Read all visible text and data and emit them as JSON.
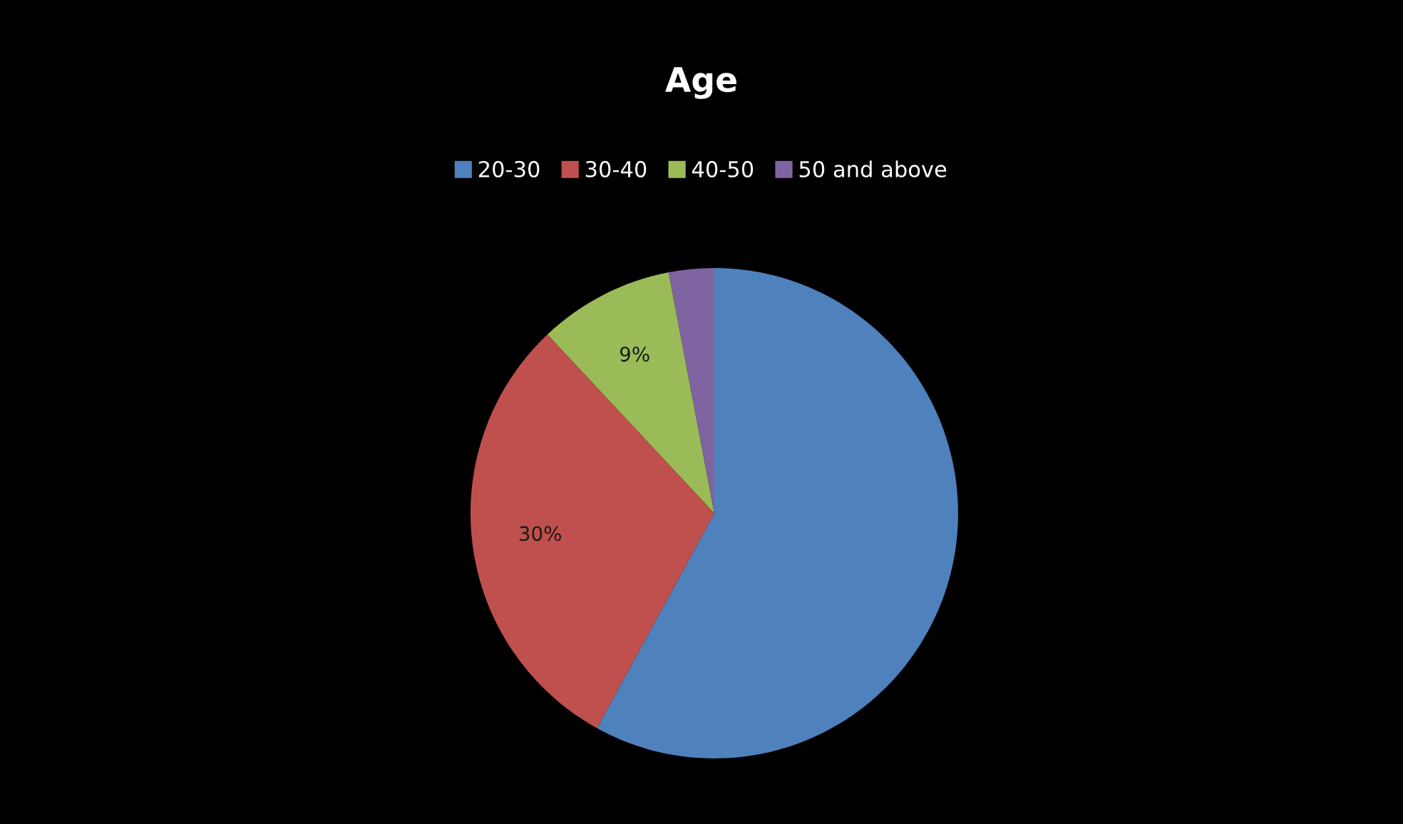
{
  "chart_data": {
    "type": "pie",
    "title": "Age",
    "categories": [
      "20-30",
      "30-40",
      "40-50",
      "50 and above"
    ],
    "values": [
      58,
      30,
      9,
      3
    ],
    "colors": [
      "#4f81bd",
      "#c0504d",
      "#9bbb59",
      "#8064a2"
    ],
    "value_labels": [
      null,
      "30%",
      "9%",
      null
    ],
    "legend": "top"
  }
}
